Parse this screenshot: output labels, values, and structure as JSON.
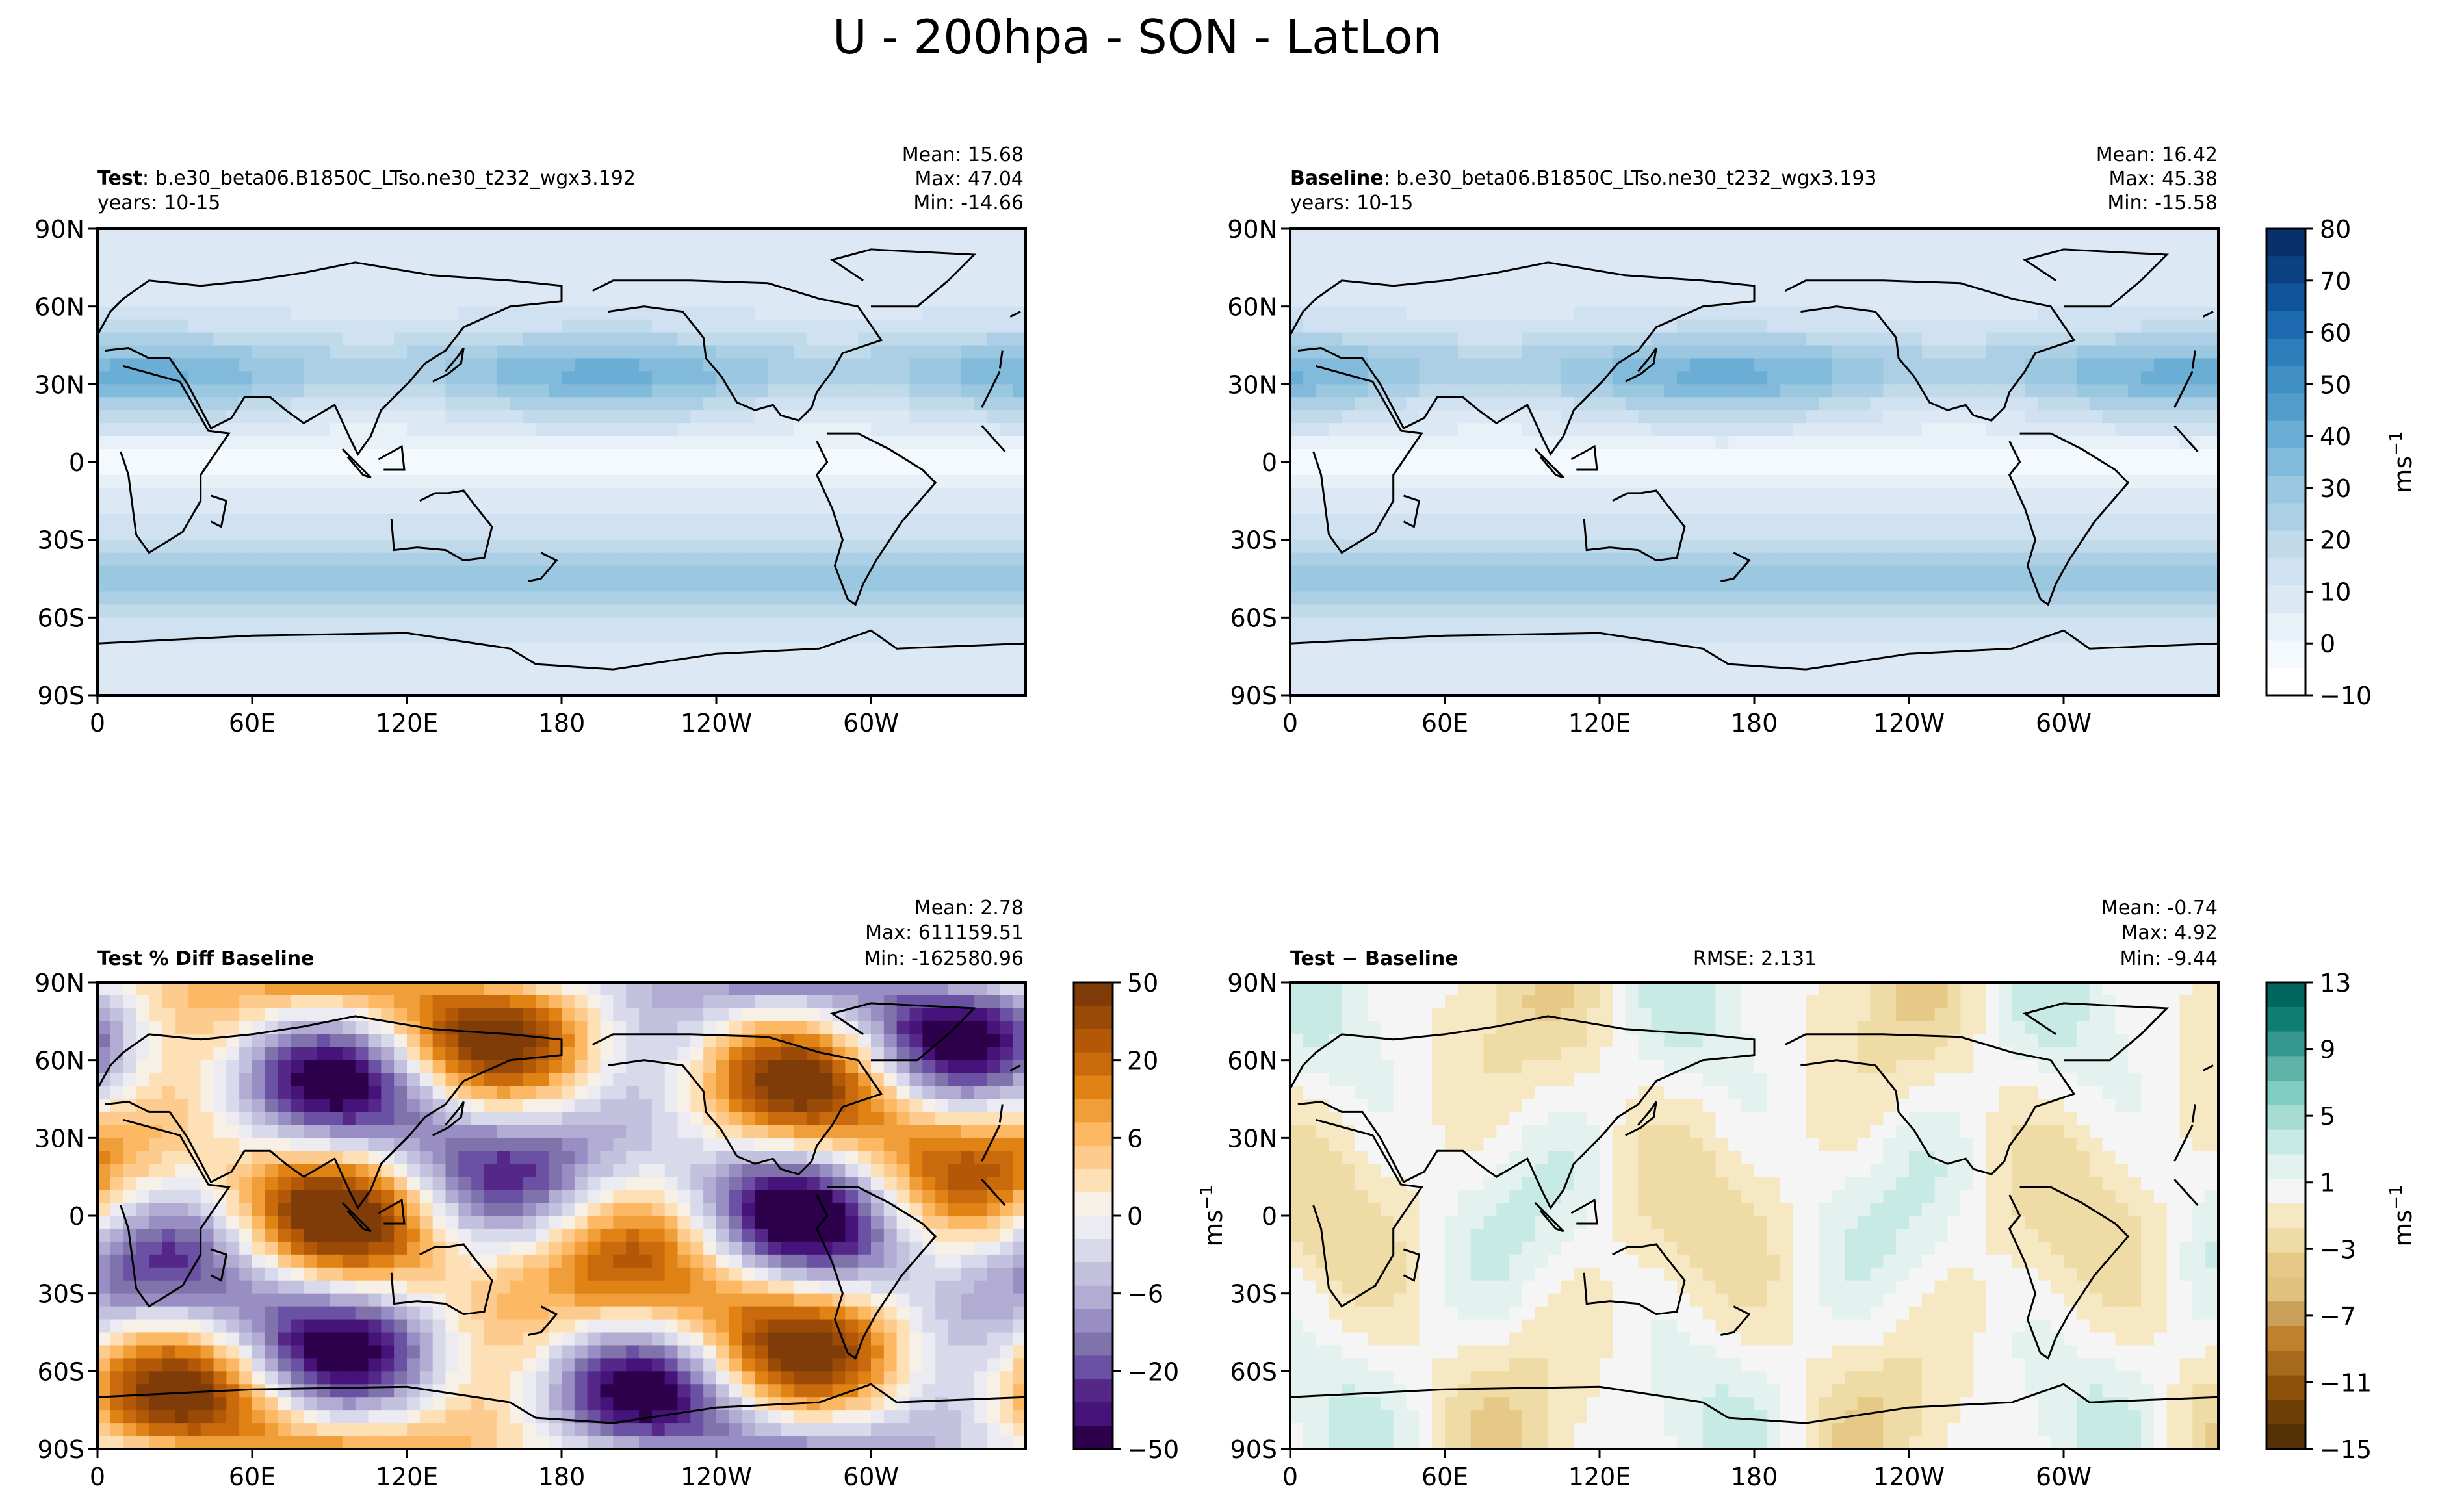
{
  "figure": {
    "title": "U - 200hpa - SON - LatLon"
  },
  "axes": {
    "lat_ticks": [
      "90N",
      "60N",
      "30N",
      "0",
      "30S",
      "60S",
      "90S"
    ],
    "lon_ticks": [
      "0",
      "60E",
      "120E",
      "180",
      "120W",
      "60W"
    ]
  },
  "panels": [
    {
      "id": "test",
      "label_bold": "Test",
      "label_rest": ": b.e30_beta06.B1850C_LTso.ne30_t232_wgx3.192",
      "years": "years: 10-15",
      "stats": [
        "Mean: 15.68",
        "Max: 47.04",
        "Min: -14.66"
      ],
      "rmse": ""
    },
    {
      "id": "baseline",
      "label_bold": "Baseline",
      "label_rest": ": b.e30_beta06.B1850C_LTso.ne30_t232_wgx3.193",
      "years": "years: 10-15",
      "stats": [
        "Mean: 16.42",
        "Max: 45.38",
        "Min: -15.58"
      ],
      "rmse": ""
    },
    {
      "id": "pctdiff",
      "label_bold": "Test % Diff Baseline",
      "label_rest": "",
      "years": "",
      "stats": [
        "Mean:  2.78",
        "Max: 611159.51",
        "Min: -162580.96"
      ],
      "rmse": ""
    },
    {
      "id": "diff",
      "label_bold": "Test − Baseline",
      "label_rest": "",
      "years": "",
      "stats": [
        "Mean: -0.74",
        "Max:  4.92",
        "Min: -9.44"
      ],
      "rmse": "RMSE: 2.131"
    }
  ],
  "colorbars": [
    {
      "id": "cb-field",
      "ticks": [
        "80",
        "70",
        "60",
        "50",
        "40",
        "30",
        "20",
        "10",
        "0",
        "−10"
      ],
      "unit": "ms",
      "unit_exp": "−1",
      "colors": [
        "#08306b",
        "#0b4083",
        "#10559a",
        "#1e6ab0",
        "#2f7ebc",
        "#4090c5",
        "#529dcc",
        "#6aadd5",
        "#82badb",
        "#9ac8e0",
        "#adcfe5",
        "#c0daea",
        "#d0e1f2",
        "#dde8f5",
        "#e8f0f8",
        "#f4f9fd",
        "#ffffff"
      ]
    },
    {
      "id": "cb-pct",
      "ticks": [
        "50",
        "20",
        "6",
        "0",
        "−6",
        "−20",
        "−50"
      ],
      "unit": "",
      "unit_exp": "",
      "colors": [
        "#7f3b08",
        "#9a4a07",
        "#b35806",
        "#c96a0c",
        "#e08214",
        "#ef9e39",
        "#fdb863",
        "#fdcb8d",
        "#fee0b6",
        "#f7f0e6",
        "#ecebf2",
        "#d8daeb",
        "#c2c2df",
        "#b2abd2",
        "#998ec3",
        "#8073ac",
        "#6a51a3",
        "#542788",
        "#45137a",
        "#2d004b"
      ]
    },
    {
      "id": "cb-diff",
      "ticks": [
        "13",
        "9",
        "5",
        "1",
        "−3",
        "−7",
        "−11",
        "−15"
      ],
      "unit": "ms",
      "unit_exp": "−1",
      "colors": [
        "#01665e",
        "#0f7f73",
        "#35978f",
        "#5fb3a8",
        "#80cdc1",
        "#a7dcd2",
        "#c7eae5",
        "#e3f2ef",
        "#f5f5f5",
        "#f6e8c3",
        "#efdba5",
        "#e6c986",
        "#dfc27d",
        "#c9a05a",
        "#bf812d",
        "#a66a1f",
        "#8c510a",
        "#6e4008",
        "#543005"
      ]
    }
  ],
  "colors": {
    "field_max": "#2f7ebc",
    "field_min": "#ffffff",
    "pct_pos": "#b35806",
    "pct_neg": "#542788",
    "diff_pos": "#35978f",
    "diff_neg": "#bf812d"
  }
}
